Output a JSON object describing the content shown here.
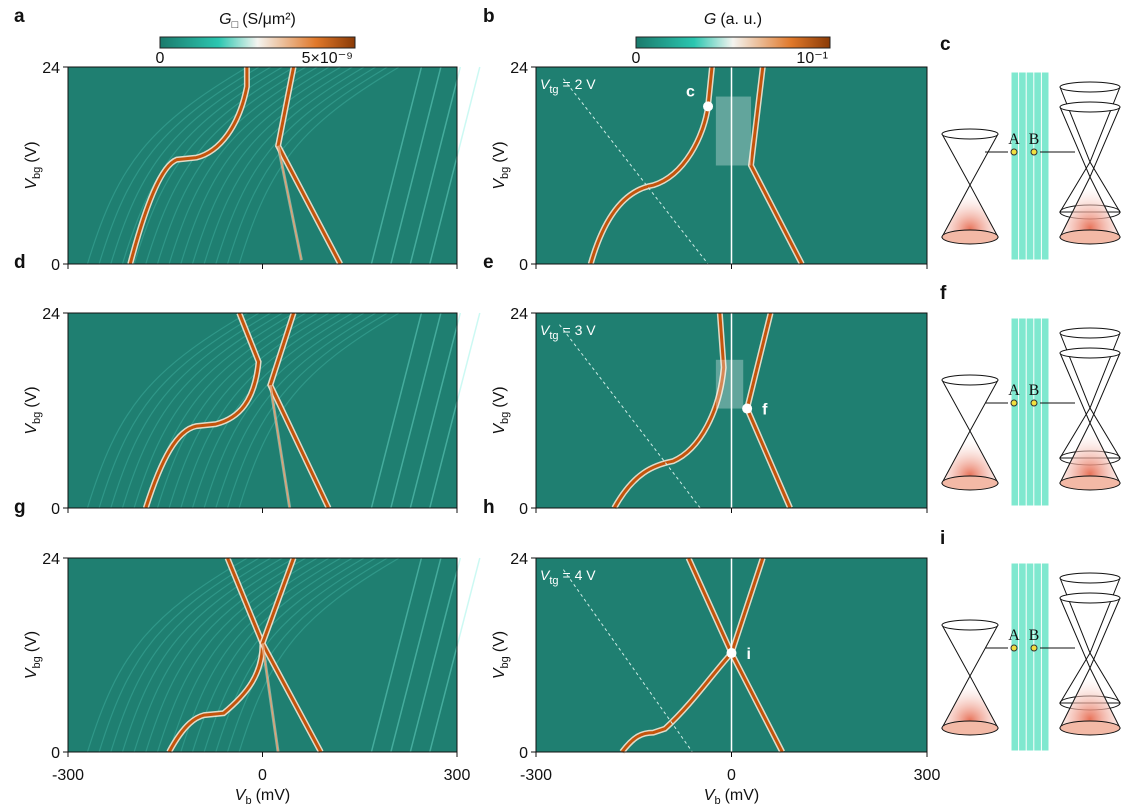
{
  "colorbars": [
    {
      "symbol": "G",
      "subscript": "□",
      "unit": "(S/μm²)",
      "ticks": [
        0,
        {
          "value": 5e-09,
          "label": "5×10⁻⁹"
        }
      ]
    },
    {
      "symbol": "G",
      "unit": "(a. u.)",
      "ticks": [
        0,
        {
          "value": 0.1,
          "label": "10⁻¹"
        }
      ]
    }
  ],
  "axes": {
    "xlim": [
      -300,
      300
    ],
    "xticks": [
      -300,
      0,
      300
    ],
    "ylim": [
      0,
      24
    ],
    "yticks": [
      0,
      24
    ],
    "x_label": {
      "symbol": "V",
      "subscript": "b",
      "unit": "(mV)"
    },
    "y_label": {
      "symbol": "V",
      "subscript": "bg",
      "unit": "(V)"
    }
  },
  "panels": [
    {
      "letter": "a"
    },
    {
      "letter": "b",
      "annotation": {
        "symbol": "V",
        "subscript": "tg",
        "text": "= 2 V"
      },
      "point_label": "c"
    },
    {
      "letter": "c",
      "labels": [
        "A",
        "B"
      ]
    },
    {
      "letter": "d"
    },
    {
      "letter": "e",
      "annotation": {
        "symbol": "V",
        "subscript": "tg",
        "text": "= 3 V"
      },
      "point_label": "f"
    },
    {
      "letter": "f",
      "labels": [
        "A",
        "B"
      ]
    },
    {
      "letter": "g"
    },
    {
      "letter": "h",
      "annotation": {
        "symbol": "V",
        "subscript": "tg",
        "text": "= 4 V"
      },
      "point_label": "i"
    },
    {
      "letter": "i",
      "labels": [
        "A",
        "B"
      ]
    }
  ]
}
